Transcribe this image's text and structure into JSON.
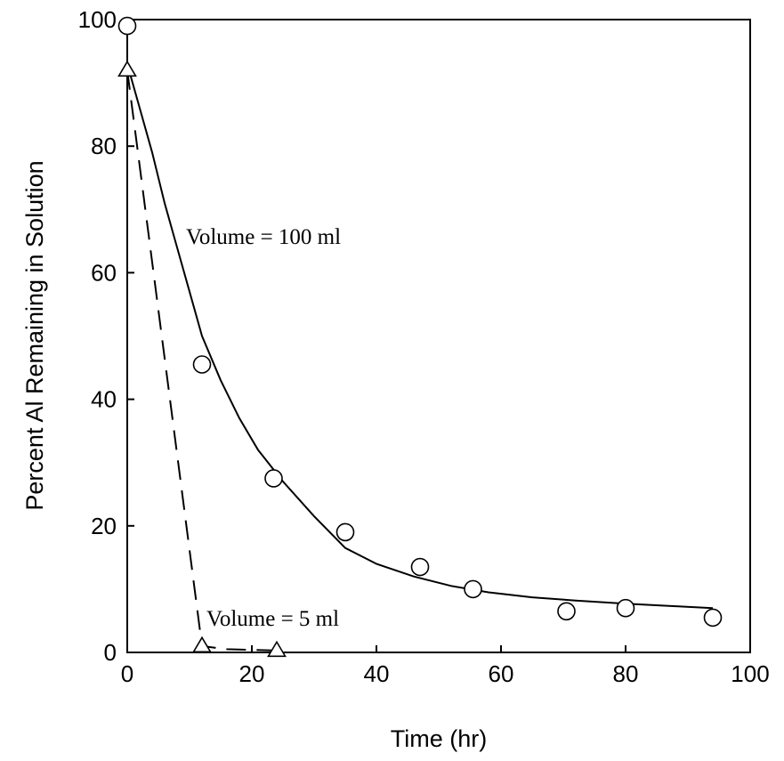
{
  "chart_data": {
    "type": "scatter",
    "title": "",
    "xlabel": "Time (hr)",
    "ylabel": "Percent Al Remaining in Solution",
    "xlim": [
      0,
      100
    ],
    "ylim": [
      0,
      100
    ],
    "xticks": [
      "0",
      "20",
      "40",
      "60",
      "80",
      "100"
    ],
    "yticks": [
      "0",
      "20",
      "40",
      "60",
      "80",
      "100"
    ],
    "grid": false,
    "legend": "none",
    "annotations": [
      "Volume = 100 ml",
      "Volume = 5 ml"
    ],
    "series": [
      {
        "marker": "circle",
        "line_style": "solid",
        "points": [
          {
            "x": 0,
            "y": 99
          },
          {
            "x": 12,
            "y": 45.5
          },
          {
            "x": 23.5,
            "y": 27.5
          },
          {
            "x": 35,
            "y": 19
          },
          {
            "x": 47,
            "y": 13.5
          },
          {
            "x": 55.5,
            "y": 10
          },
          {
            "x": 70.5,
            "y": 6.5
          },
          {
            "x": 80,
            "y": 7
          },
          {
            "x": 94,
            "y": 5.5
          }
        ],
        "fit_curve": [
          {
            "x": 0,
            "y": 93
          },
          {
            "x": 2,
            "y": 86
          },
          {
            "x": 4,
            "y": 79
          },
          {
            "x": 6,
            "y": 71
          },
          {
            "x": 8,
            "y": 64
          },
          {
            "x": 10,
            "y": 57
          },
          {
            "x": 12,
            "y": 50
          },
          {
            "x": 15,
            "y": 43
          },
          {
            "x": 18,
            "y": 37
          },
          {
            "x": 21,
            "y": 32
          },
          {
            "x": 25,
            "y": 27
          },
          {
            "x": 30,
            "y": 21.5
          },
          {
            "x": 35,
            "y": 16.5
          },
          {
            "x": 40,
            "y": 14
          },
          {
            "x": 46,
            "y": 12
          },
          {
            "x": 52,
            "y": 10.5
          },
          {
            "x": 58,
            "y": 9.5
          },
          {
            "x": 65,
            "y": 8.7
          },
          {
            "x": 72,
            "y": 8.2
          },
          {
            "x": 80,
            "y": 7.7
          },
          {
            "x": 88,
            "y": 7.3
          },
          {
            "x": 94,
            "y": 7
          }
        ]
      },
      {
        "marker": "triangle",
        "line_style": "dashed",
        "points": [
          {
            "x": 0,
            "y": 92
          },
          {
            "x": 12,
            "y": 1
          },
          {
            "x": 24,
            "y": 0.3
          }
        ],
        "fit_curve": [
          {
            "x": 0,
            "y": 92
          },
          {
            "x": 12,
            "y": 1
          },
          {
            "x": 16,
            "y": 0.5
          },
          {
            "x": 24,
            "y": 0.3
          }
        ]
      }
    ]
  }
}
